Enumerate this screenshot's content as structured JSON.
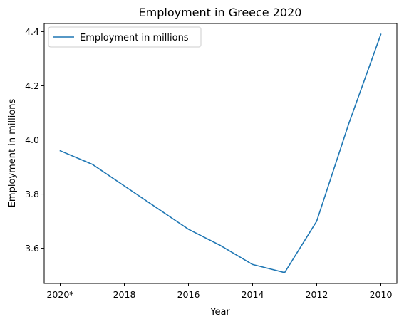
{
  "chart_data": {
    "type": "line",
    "title": "Employment in Greece 2020",
    "xlabel": "Year",
    "ylabel": "Employment in millions",
    "categories": [
      "2020*",
      "2019",
      "2018",
      "2017",
      "2016",
      "2015",
      "2014",
      "2013",
      "2012",
      "2011",
      "2010"
    ],
    "x_tick_labels": [
      "2020*",
      "2018",
      "2016",
      "2014",
      "2012",
      "2010"
    ],
    "series": [
      {
        "name": "Employment in millions",
        "color": "#1f77b4",
        "values": [
          3.96,
          3.91,
          3.83,
          3.75,
          3.67,
          3.61,
          3.54,
          3.51,
          3.7,
          4.06,
          4.39
        ]
      }
    ],
    "ylim": [
      3.47,
      4.43
    ],
    "y_ticks": [
      3.6,
      3.8,
      4.0,
      4.2,
      4.4
    ],
    "grid": false,
    "legend_position": "top-left"
  }
}
